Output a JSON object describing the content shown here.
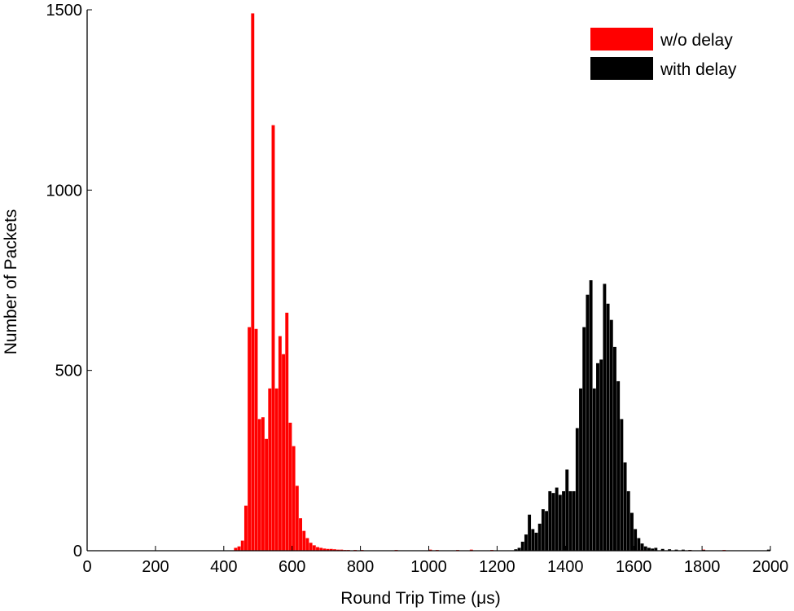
{
  "chart_data": {
    "type": "bar",
    "title": "",
    "xlabel": "Round Trip Time (μs)",
    "ylabel": "Number of Packets",
    "xlim": [
      0,
      2000
    ],
    "ylim": [
      0,
      1500
    ],
    "xticks": [
      "0",
      "200",
      "400",
      "600",
      "800",
      "1000",
      "1200",
      "1400",
      "1600",
      "1800",
      "2000"
    ],
    "yticks": [
      "0",
      "500",
      "1000",
      "1500"
    ],
    "grid": false,
    "legend_position": "top-right",
    "bin_width": 10,
    "series": [
      {
        "name": "w/o delay",
        "color": "#ff0000",
        "x": [
          430,
          440,
          450,
          460,
          470,
          480,
          490,
          500,
          510,
          520,
          530,
          540,
          550,
          560,
          570,
          580,
          590,
          600,
          610,
          620,
          630,
          640,
          650,
          660,
          670,
          680,
          690,
          700,
          710,
          720,
          730,
          740,
          750,
          760,
          780,
          800,
          820,
          840,
          860,
          880,
          900,
          920,
          940,
          960,
          980,
          1000,
          1020,
          1040,
          1060,
          1080,
          1100,
          1120,
          1140,
          1180,
          1200,
          1610,
          1630,
          1650,
          1700,
          1720,
          1760,
          1800,
          1820,
          1860,
          1900,
          1950,
          1990
        ],
        "values": [
          8,
          12,
          28,
          125,
          620,
          1490,
          615,
          365,
          370,
          310,
          450,
          1180,
          450,
          595,
          545,
          660,
          355,
          290,
          180,
          90,
          55,
          35,
          22,
          15,
          10,
          8,
          6,
          5,
          5,
          4,
          3,
          3,
          2,
          2,
          2,
          2,
          1,
          1,
          1,
          1,
          2,
          1,
          1,
          1,
          1,
          3,
          2,
          1,
          1,
          2,
          1,
          3,
          1,
          2,
          1,
          3,
          2,
          1,
          1,
          1,
          2,
          3,
          1,
          2,
          1,
          1,
          1
        ]
      },
      {
        "name": "with delay",
        "color": "#000000",
        "x": [
          1250,
          1260,
          1270,
          1280,
          1290,
          1300,
          1310,
          1320,
          1330,
          1340,
          1350,
          1360,
          1370,
          1380,
          1390,
          1400,
          1410,
          1420,
          1430,
          1440,
          1450,
          1460,
          1470,
          1480,
          1490,
          1500,
          1510,
          1520,
          1530,
          1540,
          1550,
          1560,
          1570,
          1580,
          1590,
          1600,
          1610,
          1620,
          1630,
          1640,
          1650,
          1660,
          1680,
          1700,
          1720,
          1740,
          1760,
          1800,
          1840,
          1880,
          1920,
          1960,
          1990
        ],
        "values": [
          4,
          8,
          25,
          45,
          100,
          60,
          50,
          75,
          115,
          110,
          165,
          160,
          175,
          155,
          165,
          225,
          165,
          165,
          340,
          450,
          620,
          710,
          750,
          450,
          520,
          530,
          740,
          685,
          640,
          565,
          470,
          365,
          245,
          165,
          105,
          60,
          35,
          20,
          12,
          8,
          6,
          8,
          5,
          4,
          3,
          3,
          2,
          2,
          1,
          1,
          1,
          1,
          3
        ]
      }
    ]
  }
}
